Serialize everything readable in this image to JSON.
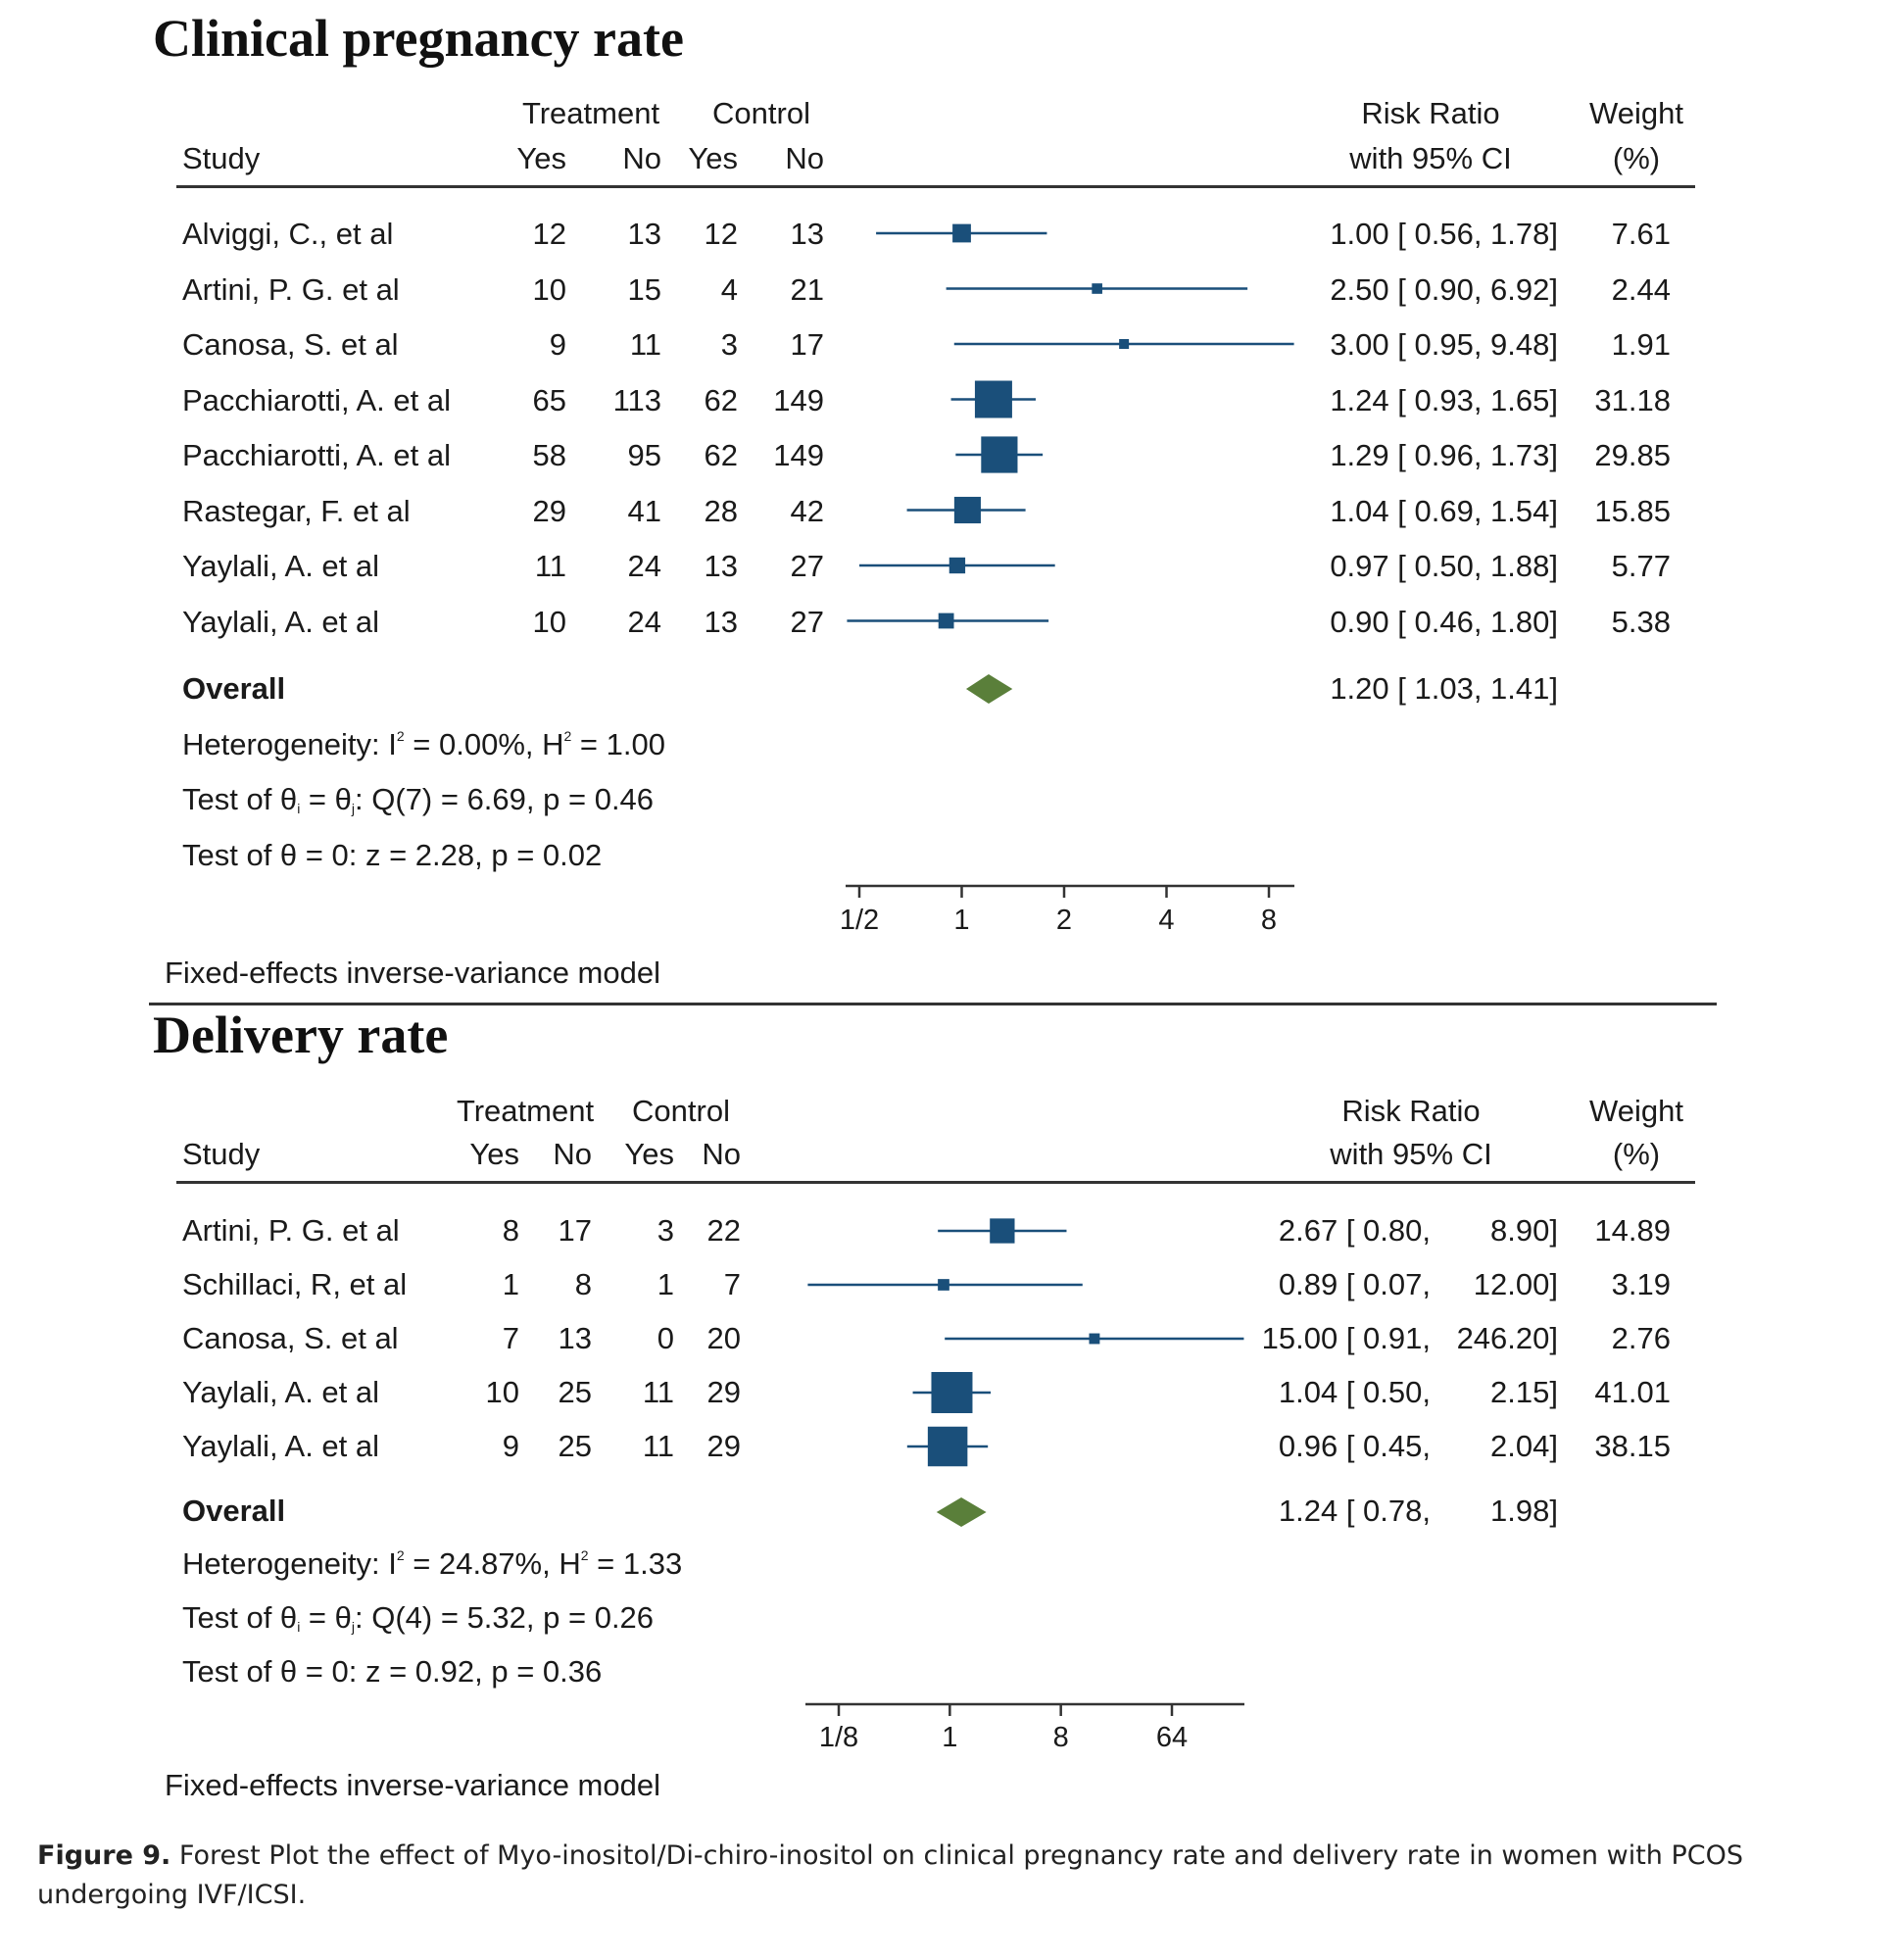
{
  "figure": {
    "caption_label": "Figure 9.",
    "caption_text": " Forest Plot the effect of Myo-inositol/Di-chiro-inositol on clinical pregnancy rate and delivery rate in women with PCOS undergoing IVF/ICSI."
  },
  "colors": {
    "marker": "#1a4f7a",
    "overall_diamond": "#5a7f3a",
    "axis": "#333333"
  },
  "chart_data": [
    {
      "type": "forest",
      "title": "Clinical pregnancy rate",
      "headers": {
        "study": "Study",
        "treatment": "Treatment",
        "control": "Control",
        "yes": "Yes",
        "no": "No",
        "rr_line1": "Risk Ratio",
        "rr_line2": "with 95% CI",
        "weight_line1": "Weight",
        "weight_line2": "(%)"
      },
      "x_scale": "log2",
      "xlim": [
        0.42,
        11
      ],
      "ticks": [
        {
          "value": 0.5,
          "label": "1/2"
        },
        {
          "value": 1,
          "label": "1"
        },
        {
          "value": 2,
          "label": "2"
        },
        {
          "value": 4,
          "label": "4"
        },
        {
          "value": 8,
          "label": "8"
        }
      ],
      "studies": [
        {
          "study": "Alviggi, C., et al",
          "t_yes": "12",
          "t_no": "13",
          "c_yes": "12",
          "c_no": "13",
          "rr": 1.0,
          "lo": 0.56,
          "hi": 1.78,
          "rr_text": "1.00 [ 0.56,  1.78]",
          "weight": 7.61,
          "weight_text": "7.61"
        },
        {
          "study": "Artini, P. G. et al",
          "t_yes": "10",
          "t_no": "15",
          "c_yes": "4",
          "c_no": "21",
          "rr": 2.5,
          "lo": 0.9,
          "hi": 6.92,
          "rr_text": "2.50 [ 0.90,  6.92]",
          "weight": 2.44,
          "weight_text": "2.44"
        },
        {
          "study": "Canosa, S. et al",
          "t_yes": "9",
          "t_no": "11",
          "c_yes": "3",
          "c_no": "17",
          "rr": 3.0,
          "lo": 0.95,
          "hi": 9.48,
          "rr_text": "3.00 [ 0.95,  9.48]",
          "weight": 1.91,
          "weight_text": "1.91"
        },
        {
          "study": "Pacchiarotti, A. et al",
          "t_yes": "65",
          "t_no": "113",
          "c_yes": "62",
          "c_no": "149",
          "rr": 1.24,
          "lo": 0.93,
          "hi": 1.65,
          "rr_text": "1.24 [ 0.93,  1.65]",
          "weight": 31.18,
          "weight_text": "31.18"
        },
        {
          "study": "Pacchiarotti, A. et al",
          "t_yes": "58",
          "t_no": "95",
          "c_yes": "62",
          "c_no": "149",
          "rr": 1.29,
          "lo": 0.96,
          "hi": 1.73,
          "rr_text": "1.29 [ 0.96,  1.73]",
          "weight": 29.85,
          "weight_text": "29.85"
        },
        {
          "study": "Rastegar, F. et al",
          "t_yes": "29",
          "t_no": "41",
          "c_yes": "28",
          "c_no": "42",
          "rr": 1.04,
          "lo": 0.69,
          "hi": 1.54,
          "rr_text": "1.04 [ 0.69,  1.54]",
          "weight": 15.85,
          "weight_text": "15.85"
        },
        {
          "study": "Yaylali, A. et al",
          "t_yes": "11",
          "t_no": "24",
          "c_yes": "13",
          "c_no": "27",
          "rr": 0.97,
          "lo": 0.5,
          "hi": 1.88,
          "rr_text": "0.97 [ 0.50,  1.88]",
          "weight": 5.77,
          "weight_text": "5.77"
        },
        {
          "study": "Yaylali, A. et al",
          "t_yes": "10",
          "t_no": "24",
          "c_yes": "13",
          "c_no": "27",
          "rr": 0.9,
          "lo": 0.46,
          "hi": 1.8,
          "rr_text": "0.90 [ 0.46,  1.80]",
          "weight": 5.38,
          "weight_text": "5.38"
        }
      ],
      "overall": {
        "label": "Overall",
        "rr": 1.2,
        "lo": 1.03,
        "hi": 1.41,
        "rr_text": "1.20 [ 1.03,  1.41]"
      },
      "stats": {
        "heterogeneity_prefix": "Heterogeneity: I",
        "i2_value": " = 0.00%, H",
        "h2_value": " = 1.00",
        "sup": "2",
        "test_ij_prefix": "Test of θ",
        "sub_i": "i",
        "test_ij_mid": " = θ",
        "sub_j": "j",
        "test_ij_suffix": ": Q(7) = 6.69, p = 0.46",
        "test_zero": "Test of θ = 0: z = 2.28, p = 0.02"
      },
      "model_note": "Fixed-effects inverse-variance model"
    },
    {
      "type": "forest",
      "title": "Delivery rate",
      "headers": {
        "study": "Study",
        "treatment": "Treatment",
        "control": "Control",
        "yes": "Yes",
        "no": "No",
        "rr_line1": "Risk Ratio",
        "rr_line2": "with 95% CI",
        "weight_line1": "Weight",
        "weight_line2": "(%)"
      },
      "x_scale": "log2",
      "xlim": [
        0.044,
        420
      ],
      "ticks": [
        {
          "value": 0.125,
          "label": "1/8"
        },
        {
          "value": 1,
          "label": "1"
        },
        {
          "value": 8,
          "label": "8"
        },
        {
          "value": 64,
          "label": "64"
        }
      ],
      "studies": [
        {
          "study": "Artini, P. G. et al",
          "t_yes": "8",
          "t_no": "17",
          "c_yes": "3",
          "c_no": "22",
          "rr": 2.67,
          "lo": 0.8,
          "hi": 8.9,
          "rr_text": "2.67 [ 0.80,",
          "rr_hi_text": "8.90]",
          "weight": 14.89,
          "weight_text": "14.89"
        },
        {
          "study": "Schillaci, R, et al",
          "t_yes": "1",
          "t_no": "8",
          "c_yes": "1",
          "c_no": "7",
          "rr": 0.89,
          "lo": 0.07,
          "hi": 12.0,
          "rr_text": "0.89 [ 0.07,",
          "rr_hi_text": "12.00]",
          "weight": 3.19,
          "weight_text": "3.19"
        },
        {
          "study": "Canosa, S. et al",
          "t_yes": "7",
          "t_no": "13",
          "c_yes": "0",
          "c_no": "20",
          "rr": 15.0,
          "lo": 0.91,
          "hi": 246.2,
          "rr_text": "15.00 [ 0.91,",
          "rr_hi_text": "246.20]",
          "weight": 2.76,
          "weight_text": "2.76"
        },
        {
          "study": "Yaylali, A. et al",
          "t_yes": "10",
          "t_no": "25",
          "c_yes": "11",
          "c_no": "29",
          "rr": 1.04,
          "lo": 0.5,
          "hi": 2.15,
          "rr_text": "1.04 [ 0.50,",
          "rr_hi_text": "2.15]",
          "weight": 41.01,
          "weight_text": "41.01"
        },
        {
          "study": "Yaylali, A. et al",
          "t_yes": "9",
          "t_no": "25",
          "c_yes": "11",
          "c_no": "29",
          "rr": 0.96,
          "lo": 0.45,
          "hi": 2.04,
          "rr_text": "0.96 [ 0.45,",
          "rr_hi_text": "2.04]",
          "weight": 38.15,
          "weight_text": "38.15"
        }
      ],
      "overall": {
        "label": "Overall",
        "rr": 1.24,
        "lo": 0.78,
        "hi": 1.98,
        "rr_text": "1.24 [ 0.78,",
        "rr_hi_text": "1.98]"
      },
      "stats": {
        "heterogeneity_prefix": "Heterogeneity: I",
        "i2_value": " = 24.87%, H",
        "h2_value": " = 1.33",
        "sup": "2",
        "test_ij_prefix": "Test of θ",
        "sub_i": "i",
        "test_ij_mid": " = θ",
        "sub_j": "j",
        "test_ij_suffix": ": Q(4) = 5.32, p = 0.26",
        "test_zero": "Test of θ = 0: z = 0.92, p = 0.36"
      },
      "model_note": "Fixed-effects inverse-variance model"
    }
  ]
}
